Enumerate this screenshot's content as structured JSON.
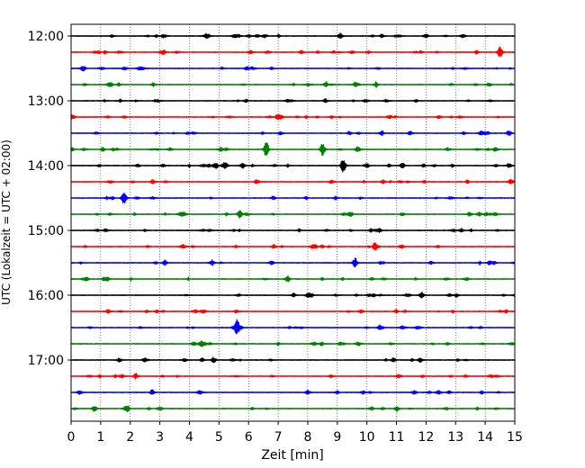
{
  "chart_data": {
    "type": "line",
    "title": "",
    "xlabel": "Zeit  [min]",
    "ylabel": "UTC (Lokalzeit = UTC + 02:00)",
    "xlim": [
      0,
      15
    ],
    "x_ticks": [
      0,
      1,
      2,
      3,
      4,
      5,
      6,
      7,
      8,
      9,
      10,
      11,
      12,
      13,
      14,
      15
    ],
    "x_tick_labels": [
      "0",
      "1",
      "2",
      "3",
      "4",
      "5",
      "6",
      "7",
      "8",
      "9",
      "10",
      "11",
      "12",
      "13",
      "14",
      "15"
    ],
    "y_tick_labels": [
      {
        "row": 0,
        "label": "12:00"
      },
      {
        "row": 4,
        "label": "13:00"
      },
      {
        "row": 8,
        "label": "14:00"
      },
      {
        "row": 12,
        "label": "15:00"
      },
      {
        "row": 16,
        "label": "16:00"
      },
      {
        "row": 20,
        "label": "17:00"
      }
    ],
    "grid": "vertical-dotted",
    "line_colors": [
      "#000000",
      "#ff0000",
      "#0000ff",
      "#008000"
    ],
    "series": [
      {
        "start": "12:00",
        "events": [
          {
            "t": 9.1,
            "a": 0.35
          },
          {
            "t": 12.0,
            "a": 0.3
          }
        ]
      },
      {
        "start": "12:15",
        "events": [
          {
            "t": 14.5,
            "a": 0.9
          }
        ]
      },
      {
        "start": "12:30",
        "events": [
          {
            "t": 2.3,
            "a": 0.2
          }
        ]
      },
      {
        "start": "12:45",
        "events": [
          {
            "t": 1.3,
            "a": 0.35
          },
          {
            "t": 9.6,
            "a": 0.25
          }
        ]
      },
      {
        "start": "13:00",
        "events": [
          {
            "t": 8.6,
            "a": 0.25
          }
        ]
      },
      {
        "start": "13:15",
        "events": []
      },
      {
        "start": "13:30",
        "events": [
          {
            "t": 14.8,
            "a": 0.35
          }
        ]
      },
      {
        "start": "13:45",
        "events": [
          {
            "t": 6.6,
            "a": 1.3
          },
          {
            "t": 8.5,
            "a": 0.9
          }
        ]
      },
      {
        "start": "14:00",
        "events": [
          {
            "t": 4.9,
            "a": 0.35
          },
          {
            "t": 5.8,
            "a": 0.35
          },
          {
            "t": 9.2,
            "a": 1.1
          },
          {
            "t": 11.2,
            "a": 0.35
          },
          {
            "t": 14.8,
            "a": 0.3
          }
        ]
      },
      {
        "start": "14:15",
        "events": [
          {
            "t": 8.8,
            "a": 0.25
          }
        ]
      },
      {
        "start": "14:30",
        "events": [
          {
            "t": 1.8,
            "a": 0.7
          }
        ]
      },
      {
        "start": "14:45",
        "events": [
          {
            "t": 5.7,
            "a": 0.6
          }
        ]
      },
      {
        "start": "15:00",
        "events": [
          {
            "t": 13.2,
            "a": 0.25
          }
        ]
      },
      {
        "start": "15:15",
        "events": [
          {
            "t": 3.8,
            "a": 0.2
          }
        ]
      },
      {
        "start": "15:30",
        "events": [
          {
            "t": 9.6,
            "a": 0.7
          },
          {
            "t": 14.3,
            "a": 0.2
          }
        ]
      },
      {
        "start": "15:45",
        "events": [
          {
            "t": 7.3,
            "a": 0.2
          }
        ]
      },
      {
        "start": "16:00",
        "events": [
          {
            "t": 8.0,
            "a": 0.25
          },
          {
            "t": 12.8,
            "a": 0.2
          }
        ]
      },
      {
        "start": "16:15",
        "events": [
          {
            "t": 9.8,
            "a": 0.2
          }
        ]
      },
      {
        "start": "16:30",
        "events": [
          {
            "t": 5.6,
            "a": 1.4
          }
        ]
      },
      {
        "start": "16:45",
        "events": [
          {
            "t": 4.4,
            "a": 0.45
          },
          {
            "t": 9.1,
            "a": 0.2
          }
        ]
      },
      {
        "start": "17:00",
        "events": [
          {
            "t": 11.8,
            "a": 0.3
          }
        ]
      },
      {
        "start": "17:15",
        "events": []
      },
      {
        "start": "17:30",
        "events": [
          {
            "t": 8.0,
            "a": 0.3
          }
        ]
      },
      {
        "start": "17:45",
        "events": [
          {
            "t": 1.9,
            "a": 0.45
          }
        ]
      }
    ]
  }
}
